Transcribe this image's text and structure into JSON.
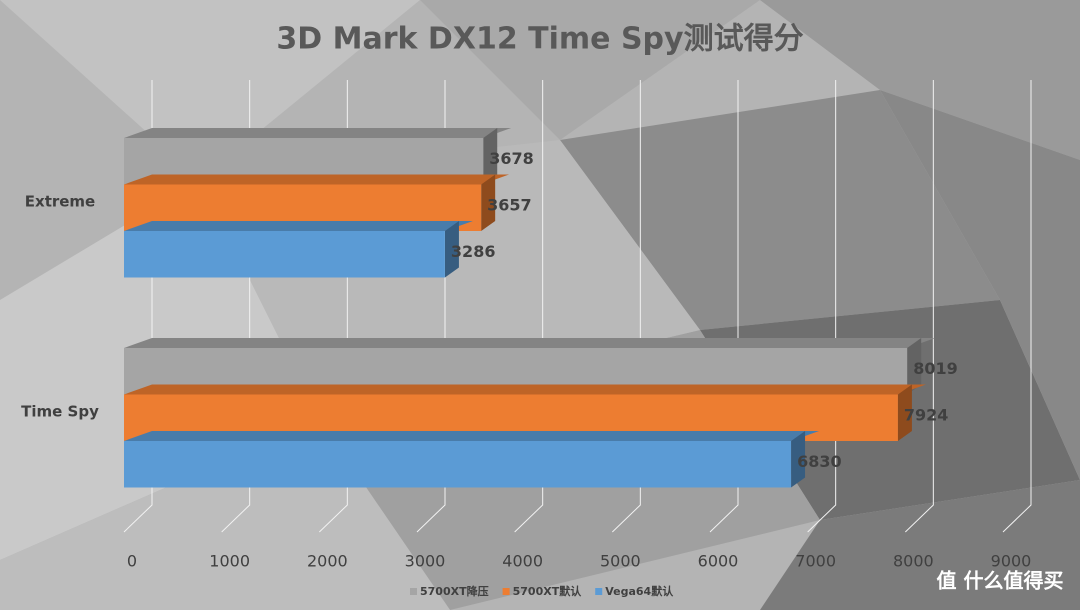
{
  "chart_data": {
    "type": "bar3d",
    "title": "3D Mark DX12 Time Spy测试得分",
    "categories": [
      "Extreme",
      "Time Spy"
    ],
    "series": [
      {
        "name": "5700XT降压",
        "color": "#a5a5a5",
        "values": [
          3678,
          8019
        ]
      },
      {
        "name": "5700XT默认",
        "color": "#ed7d31",
        "values": [
          3657,
          7924
        ]
      },
      {
        "name": "Vega64默认",
        "color": "#5b9bd5",
        "values": [
          3286,
          6830
        ]
      }
    ],
    "xlim": [
      0,
      9000
    ],
    "xticks": [
      0,
      1000,
      2000,
      3000,
      4000,
      5000,
      6000,
      7000,
      8000,
      9000
    ],
    "grid": true,
    "legend": "bottom"
  },
  "watermark": "值 什么值得买"
}
